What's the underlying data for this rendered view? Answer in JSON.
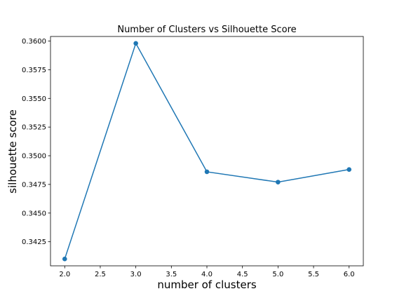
{
  "chart_data": {
    "type": "line",
    "title": "Number of Clusters vs Silhouette Score",
    "xlabel": "number of clusters",
    "ylabel": "silhouette score",
    "x": [
      2,
      3,
      4,
      5,
      6
    ],
    "y": [
      0.341,
      0.3598,
      0.3486,
      0.3477,
      0.3488
    ],
    "xlim": [
      1.8,
      6.2
    ],
    "ylim": [
      0.3404,
      0.3604
    ],
    "xticks": [
      "2.0",
      "2.5",
      "3.0",
      "3.5",
      "4.0",
      "4.5",
      "5.0",
      "5.5",
      "6.0"
    ],
    "yticks": [
      "0.3425",
      "0.3450",
      "0.3475",
      "0.3500",
      "0.3525",
      "0.3550",
      "0.3575",
      "0.3600"
    ],
    "marker": "circle",
    "grid": false,
    "legend": false,
    "colors": {
      "line": "#1f77b4",
      "axes": "#000000",
      "background": "#ffffff"
    }
  }
}
